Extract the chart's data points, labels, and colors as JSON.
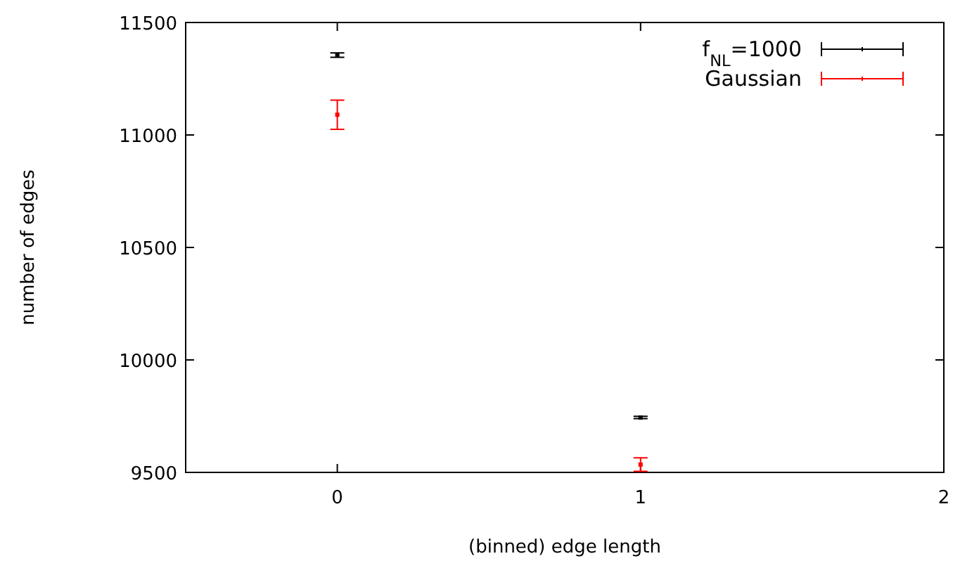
{
  "chart_data": {
    "type": "scatter",
    "xlabel": "(binned) edge length",
    "ylabel": "number of edges",
    "x": [
      0,
      1
    ],
    "xlim": [
      -0.5,
      2
    ],
    "xticks": [
      0,
      1,
      2
    ],
    "ylim": [
      9500,
      11500
    ],
    "yticks": [
      9500,
      10000,
      10500,
      11000,
      11500
    ],
    "grid": false,
    "legend": "top right",
    "series": [
      {
        "name": "f$_{NL}$=1000",
        "color": "#000000",
        "values": [
          11355,
          9744
        ],
        "errors": [
          10,
          5
        ]
      },
      {
        "name": "Gaussian",
        "color": "#ff0000",
        "values": [
          11090,
          9535
        ],
        "errors": [
          65,
          30
        ]
      }
    ]
  }
}
